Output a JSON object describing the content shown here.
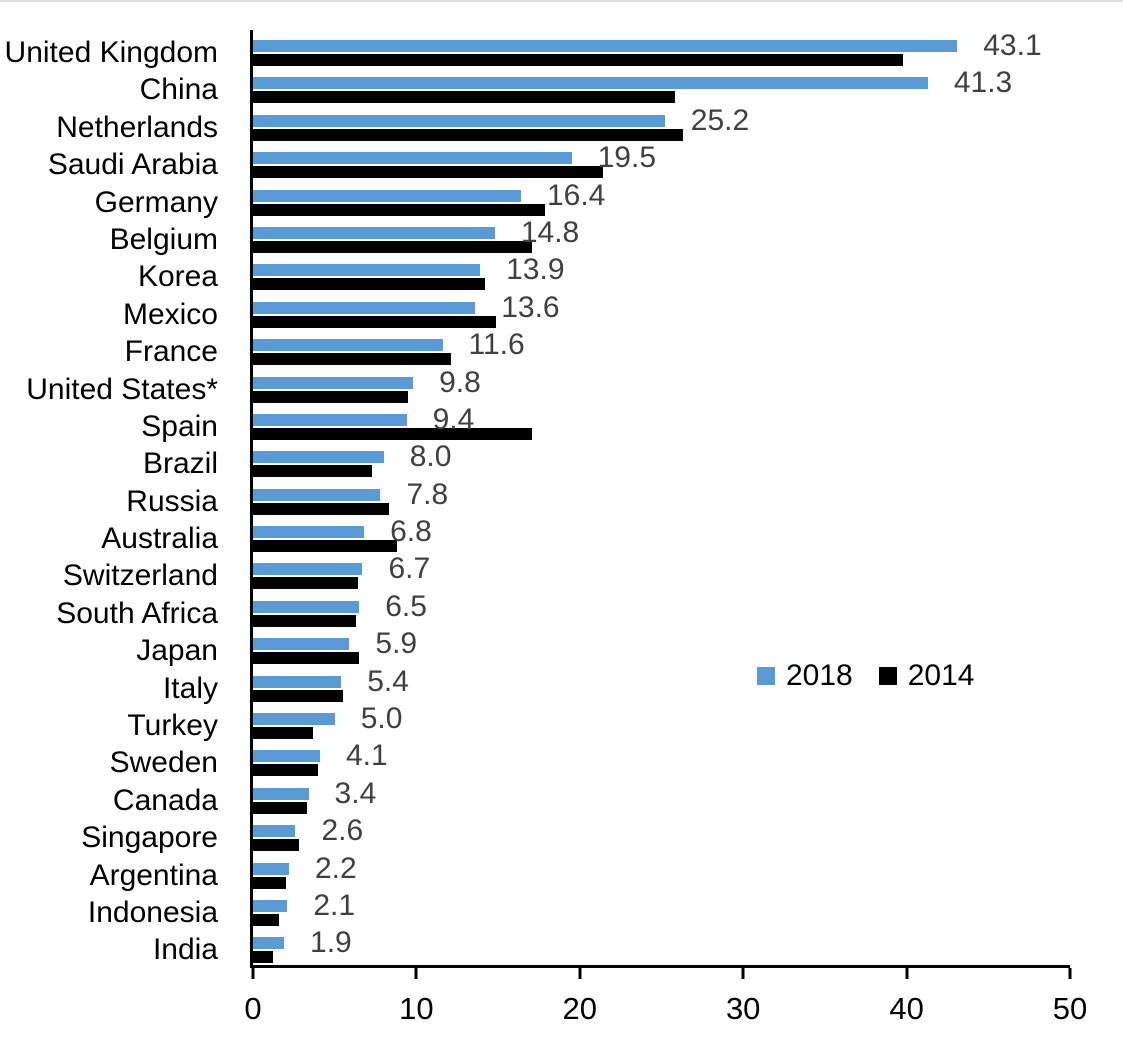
{
  "chart_data": {
    "type": "bar",
    "orientation": "horizontal",
    "grouped": true,
    "title": "",
    "xlabel": "",
    "ylabel": "",
    "xlim": [
      0,
      50
    ],
    "x_ticks": [
      0,
      10,
      20,
      30,
      40,
      50
    ],
    "grid": false,
    "legend_position": "middle-right",
    "categories": [
      "United Kingdom",
      "China",
      "Netherlands",
      "Saudi Arabia",
      "Germany",
      "Belgium",
      "Korea",
      "Mexico",
      "France",
      "United States*",
      "Spain",
      "Brazil",
      "Russia",
      "Australia",
      "Switzerland",
      "South Africa",
      "Japan",
      "Italy",
      "Turkey",
      "Sweden",
      "Canada",
      "Singapore",
      "Argentina",
      "Indonesia",
      "India"
    ],
    "series": [
      {
        "name": "2018",
        "color": "#5B9BD5",
        "values": [
          43.1,
          41.3,
          25.2,
          19.5,
          16.4,
          14.8,
          13.9,
          13.6,
          11.6,
          9.8,
          9.4,
          8.0,
          7.8,
          6.8,
          6.7,
          6.5,
          5.9,
          5.4,
          5.0,
          4.1,
          3.4,
          2.6,
          2.2,
          2.1,
          1.9
        ],
        "data_labels": [
          "43.1",
          "41.3",
          "25.2",
          "19.5",
          "16.4",
          "14.8",
          "13.9",
          "13.6",
          "11.6",
          "9.8",
          "9.4",
          "8.0",
          "7.8",
          "6.8",
          "6.7",
          "6.5",
          "5.9",
          "5.4",
          "5.0",
          "4.1",
          "3.4",
          "2.6",
          "2.2",
          "2.1",
          "1.9"
        ]
      },
      {
        "name": "2014",
        "color": "#000000",
        "values": [
          39.8,
          25.8,
          26.3,
          21.4,
          17.9,
          17.1,
          14.2,
          14.9,
          12.1,
          9.5,
          17.1,
          7.3,
          8.3,
          8.8,
          6.4,
          6.3,
          6.5,
          5.5,
          3.7,
          4.0,
          3.3,
          2.8,
          2.0,
          1.6,
          1.2
        ],
        "data_labels": []
      }
    ],
    "value_label_color": "#404040",
    "axis_color": "#000000"
  },
  "legend": {
    "items": [
      {
        "label": "2018",
        "color": "#5B9BD5"
      },
      {
        "label": "2014",
        "color": "#000000"
      }
    ]
  }
}
